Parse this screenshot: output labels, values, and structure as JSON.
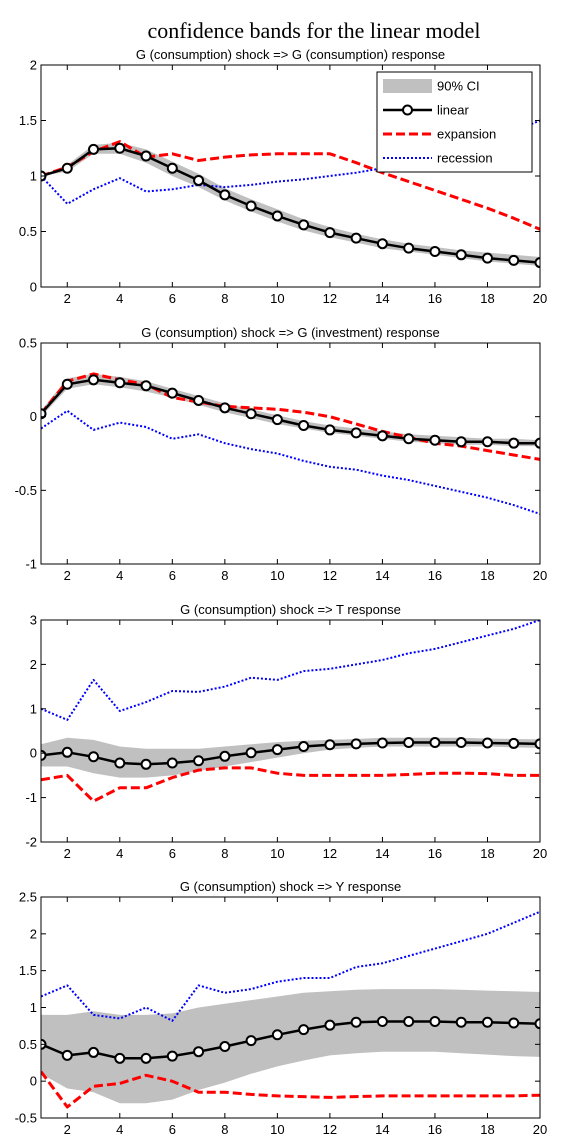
{
  "figure_title": "confidence bands for the linear model",
  "chart_data": [
    {
      "type": "line",
      "title": "G (consumption) shock => G (consumption) response",
      "x": [
        1,
        2,
        3,
        4,
        5,
        6,
        7,
        8,
        9,
        10,
        11,
        12,
        13,
        14,
        15,
        16,
        17,
        18,
        19,
        20
      ],
      "xlim": [
        1,
        20
      ],
      "ylim": [
        0,
        2
      ],
      "xticks": [
        2,
        4,
        6,
        8,
        10,
        12,
        14,
        16,
        18,
        20
      ],
      "yticks": [
        0,
        0.5,
        1,
        1.5,
        2
      ],
      "ytick_labels": [
        "0",
        "0.5",
        "1",
        "1.5",
        "2"
      ],
      "grid": false,
      "legend": {
        "placement": "top-right",
        "entries": [
          "90% CI",
          "linear",
          "expansion",
          "recession"
        ]
      },
      "ci_band": {
        "name": "90% CI",
        "lower": [
          1.0,
          1.04,
          1.2,
          1.2,
          1.12,
          1.0,
          0.9,
          0.78,
          0.68,
          0.59,
          0.51,
          0.45,
          0.4,
          0.35,
          0.32,
          0.29,
          0.26,
          0.23,
          0.21,
          0.19
        ],
        "upper": [
          1.0,
          1.1,
          1.28,
          1.3,
          1.24,
          1.13,
          1.02,
          0.89,
          0.79,
          0.7,
          0.61,
          0.54,
          0.48,
          0.43,
          0.39,
          0.36,
          0.33,
          0.31,
          0.29,
          0.27
        ]
      },
      "series": [
        {
          "name": "linear",
          "values": [
            1.0,
            1.07,
            1.24,
            1.25,
            1.18,
            1.07,
            0.96,
            0.83,
            0.73,
            0.64,
            0.56,
            0.49,
            0.44,
            0.39,
            0.35,
            0.32,
            0.29,
            0.26,
            0.24,
            0.22
          ]
        },
        {
          "name": "expansion",
          "values": [
            1.0,
            1.08,
            1.22,
            1.31,
            1.17,
            1.2,
            1.14,
            1.17,
            1.19,
            1.2,
            1.2,
            1.2,
            1.12,
            1.03,
            0.95,
            0.87,
            0.79,
            0.71,
            0.62,
            0.52
          ]
        },
        {
          "name": "recession",
          "values": [
            1.0,
            0.75,
            0.88,
            0.98,
            0.86,
            0.88,
            0.92,
            0.9,
            0.92,
            0.95,
            0.97,
            1.0,
            1.03,
            1.07,
            1.12,
            1.17,
            1.24,
            1.31,
            1.4,
            1.5
          ]
        }
      ]
    },
    {
      "type": "line",
      "title": "G (consumption) shock => G (investment) response",
      "x": [
        1,
        2,
        3,
        4,
        5,
        6,
        7,
        8,
        9,
        10,
        11,
        12,
        13,
        14,
        15,
        16,
        17,
        18,
        19,
        20
      ],
      "xlim": [
        1,
        20
      ],
      "ylim": [
        -1,
        0.5
      ],
      "xticks": [
        2,
        4,
        6,
        8,
        10,
        12,
        14,
        16,
        18,
        20
      ],
      "yticks": [
        -1,
        -0.5,
        0,
        0.5
      ],
      "ytick_labels": [
        "-1",
        "-0.5",
        "0",
        "0.5"
      ],
      "grid": false,
      "ci_band": {
        "name": "90% CI",
        "lower": [
          0.0,
          0.19,
          0.22,
          0.2,
          0.17,
          0.13,
          0.08,
          0.03,
          -0.01,
          -0.05,
          -0.08,
          -0.11,
          -0.13,
          -0.15,
          -0.17,
          -0.18,
          -0.19,
          -0.19,
          -0.2,
          -0.2
        ],
        "upper": [
          0.04,
          0.26,
          0.29,
          0.27,
          0.24,
          0.19,
          0.14,
          0.09,
          0.05,
          0.01,
          -0.03,
          -0.06,
          -0.08,
          -0.1,
          -0.12,
          -0.13,
          -0.14,
          -0.15,
          -0.15,
          -0.16
        ]
      },
      "series": [
        {
          "name": "linear",
          "values": [
            0.02,
            0.22,
            0.25,
            0.23,
            0.21,
            0.16,
            0.11,
            0.06,
            0.02,
            -0.02,
            -0.06,
            -0.09,
            -0.11,
            -0.13,
            -0.15,
            -0.16,
            -0.17,
            -0.17,
            -0.18,
            -0.18
          ]
        },
        {
          "name": "expansion",
          "values": [
            0.02,
            0.24,
            0.29,
            0.25,
            0.22,
            0.13,
            0.1,
            0.07,
            0.06,
            0.05,
            0.03,
            0.0,
            -0.05,
            -0.1,
            -0.14,
            -0.18,
            -0.2,
            -0.23,
            -0.26,
            -0.29
          ]
        },
        {
          "name": "recession",
          "values": [
            -0.08,
            0.04,
            -0.09,
            -0.04,
            -0.07,
            -0.15,
            -0.12,
            -0.18,
            -0.22,
            -0.25,
            -0.3,
            -0.34,
            -0.36,
            -0.4,
            -0.43,
            -0.47,
            -0.51,
            -0.55,
            -0.6,
            -0.66
          ]
        }
      ]
    },
    {
      "type": "line",
      "title": "G (consumption) shock => T response",
      "x": [
        1,
        2,
        3,
        4,
        5,
        6,
        7,
        8,
        9,
        10,
        11,
        12,
        13,
        14,
        15,
        16,
        17,
        18,
        19,
        20
      ],
      "xlim": [
        1,
        20
      ],
      "ylim": [
        -2,
        3
      ],
      "xticks": [
        2,
        4,
        6,
        8,
        10,
        12,
        14,
        16,
        18,
        20
      ],
      "yticks": [
        -2,
        -1,
        0,
        1,
        2,
        3
      ],
      "ytick_labels": [
        "-2",
        "-1",
        "0",
        "1",
        "2",
        "3"
      ],
      "grid": false,
      "ci_band": {
        "name": "90% CI",
        "lower": [
          -0.3,
          -0.3,
          -0.45,
          -0.55,
          -0.55,
          -0.5,
          -0.4,
          -0.3,
          -0.2,
          -0.1,
          0.0,
          0.08,
          0.12,
          0.15,
          0.15,
          0.15,
          0.15,
          0.15,
          0.13,
          0.12
        ],
        "upper": [
          0.2,
          0.35,
          0.3,
          0.15,
          0.1,
          0.1,
          0.1,
          0.15,
          0.2,
          0.25,
          0.28,
          0.3,
          0.32,
          0.35,
          0.35,
          0.35,
          0.35,
          0.33,
          0.32,
          0.31
        ]
      },
      "series": [
        {
          "name": "linear",
          "values": [
            -0.05,
            0.02,
            -0.08,
            -0.22,
            -0.25,
            -0.22,
            -0.17,
            -0.07,
            0.01,
            0.08,
            0.15,
            0.19,
            0.21,
            0.23,
            0.24,
            0.24,
            0.24,
            0.23,
            0.22,
            0.21
          ]
        },
        {
          "name": "expansion",
          "values": [
            -0.6,
            -0.5,
            -1.08,
            -0.78,
            -0.78,
            -0.55,
            -0.38,
            -0.33,
            -0.33,
            -0.45,
            -0.5,
            -0.5,
            -0.5,
            -0.5,
            -0.48,
            -0.45,
            -0.45,
            -0.46,
            -0.5,
            -0.5
          ]
        },
        {
          "name": "recession",
          "values": [
            1.0,
            0.75,
            1.65,
            0.95,
            1.15,
            1.4,
            1.38,
            1.5,
            1.7,
            1.65,
            1.85,
            1.9,
            2.0,
            2.1,
            2.25,
            2.35,
            2.5,
            2.65,
            2.8,
            3.0
          ]
        }
      ]
    },
    {
      "type": "line",
      "title": "G (consumption) shock => Y response",
      "x": [
        1,
        2,
        3,
        4,
        5,
        6,
        7,
        8,
        9,
        10,
        11,
        12,
        13,
        14,
        15,
        16,
        17,
        18,
        19,
        20
      ],
      "xlim": [
        1,
        20
      ],
      "ylim": [
        -0.5,
        2.5
      ],
      "xticks": [
        2,
        4,
        6,
        8,
        10,
        12,
        14,
        16,
        18,
        20
      ],
      "yticks": [
        -0.5,
        0,
        0.5,
        1,
        1.5,
        2,
        2.5
      ],
      "ytick_labels": [
        "-0.5",
        "0",
        "0.5",
        "1",
        "1.5",
        "2",
        "2.5"
      ],
      "grid": false,
      "ci_band": {
        "name": "90% CI",
        "lower": [
          0.1,
          -0.1,
          -0.15,
          -0.3,
          -0.3,
          -0.25,
          -0.12,
          -0.02,
          0.1,
          0.2,
          0.28,
          0.35,
          0.38,
          0.4,
          0.4,
          0.4,
          0.38,
          0.36,
          0.34,
          0.33
        ],
        "upper": [
          0.9,
          0.9,
          0.95,
          0.9,
          0.9,
          0.92,
          1.0,
          1.05,
          1.1,
          1.15,
          1.2,
          1.22,
          1.24,
          1.25,
          1.25,
          1.25,
          1.24,
          1.23,
          1.22,
          1.21
        ]
      },
      "series": [
        {
          "name": "linear",
          "values": [
            0.5,
            0.35,
            0.39,
            0.31,
            0.31,
            0.34,
            0.4,
            0.47,
            0.55,
            0.63,
            0.7,
            0.76,
            0.8,
            0.81,
            0.81,
            0.81,
            0.8,
            0.8,
            0.79,
            0.78
          ]
        },
        {
          "name": "expansion",
          "values": [
            0.13,
            -0.35,
            -0.07,
            -0.03,
            0.08,
            0.0,
            -0.15,
            -0.15,
            -0.18,
            -0.2,
            -0.21,
            -0.22,
            -0.21,
            -0.2,
            -0.2,
            -0.2,
            -0.2,
            -0.2,
            -0.2,
            -0.19
          ]
        },
        {
          "name": "recession",
          "values": [
            1.15,
            1.3,
            0.9,
            0.85,
            1.0,
            0.82,
            1.3,
            1.2,
            1.25,
            1.35,
            1.4,
            1.4,
            1.55,
            1.6,
            1.7,
            1.8,
            1.9,
            2.0,
            2.15,
            2.3
          ]
        }
      ]
    }
  ],
  "colors": {
    "ci_band": "#c0c0c0",
    "linear": "#000000",
    "expansion": "#ff0000",
    "recession": "#0000ff"
  }
}
